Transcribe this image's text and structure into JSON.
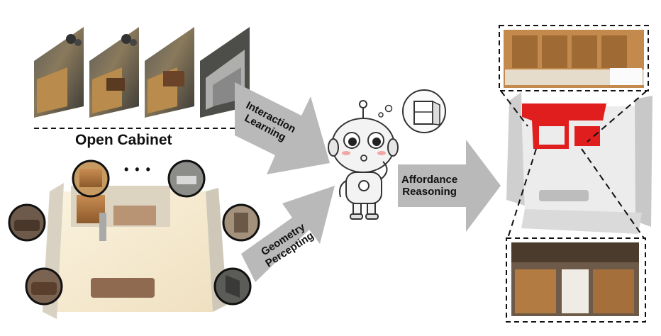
{
  "labels": {
    "task": "Open Cabinet",
    "ellipsis": "• • •",
    "interaction_line1": "Interaction",
    "interaction_line2": "Learning",
    "geometry_line1": "Geometry",
    "geometry_line2": "Percepting",
    "affordance_line1": "Affordance",
    "affordance_line2": "Reasoning"
  },
  "colors": {
    "arrow": "#b9b9b9",
    "highlight": "#e01e1e",
    "pointcloud": "#d6d6d6",
    "wood": "#9a6a38",
    "floor": "#f2e6cc"
  },
  "icons": {
    "video_frames": "kitchen-frame-icon",
    "robot": "robot-mascot-icon",
    "thought": "cabinet-thought-icon",
    "object_crops": "object-crop-icon"
  }
}
